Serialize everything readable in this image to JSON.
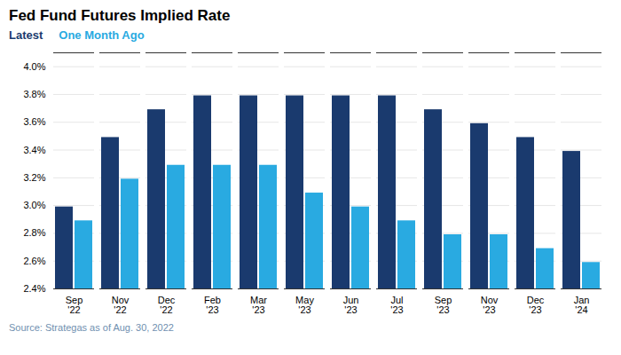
{
  "chart_data": {
    "type": "bar",
    "title": "Fed Fund Futures Implied Rate",
    "caption": "Source: Strategas as of Aug. 30, 2022",
    "categories": [
      "Sep\n'22",
      "Nov\n'22",
      "Dec\n'22",
      "Feb\n'23",
      "Mar\n'23",
      "May\n'23",
      "Jun\n'23",
      "Jul\n'23",
      "Sep\n'23",
      "Nov\n'23",
      "Dec\n'23",
      "Jan\n'24"
    ],
    "series": [
      {
        "name": "Latest",
        "color": "#1a3a6e",
        "values": [
          2.99,
          3.49,
          3.69,
          3.79,
          3.79,
          3.79,
          3.79,
          3.79,
          3.69,
          3.59,
          3.49,
          3.39
        ]
      },
      {
        "name": "One Month Ago",
        "color": "#29aae1",
        "values": [
          2.89,
          3.19,
          3.29,
          3.29,
          3.29,
          3.09,
          2.99,
          2.89,
          2.79,
          2.79,
          2.69,
          2.59
        ]
      }
    ],
    "ylim": [
      2.4,
      4.1
    ],
    "yticks": [
      {
        "value": 2.4,
        "label": "2.4%"
      },
      {
        "value": 2.6,
        "label": "2.6%"
      },
      {
        "value": 2.8,
        "label": "2.8%"
      },
      {
        "value": 3.0,
        "label": "3.0%"
      },
      {
        "value": 3.2,
        "label": "3.2%"
      },
      {
        "value": 3.4,
        "label": "3.4%"
      },
      {
        "value": 3.6,
        "label": "3.6%"
      },
      {
        "value": 3.8,
        "label": "3.8%"
      },
      {
        "value": 4.0,
        "label": "4.0%"
      }
    ],
    "grid": true,
    "legend": "top"
  }
}
